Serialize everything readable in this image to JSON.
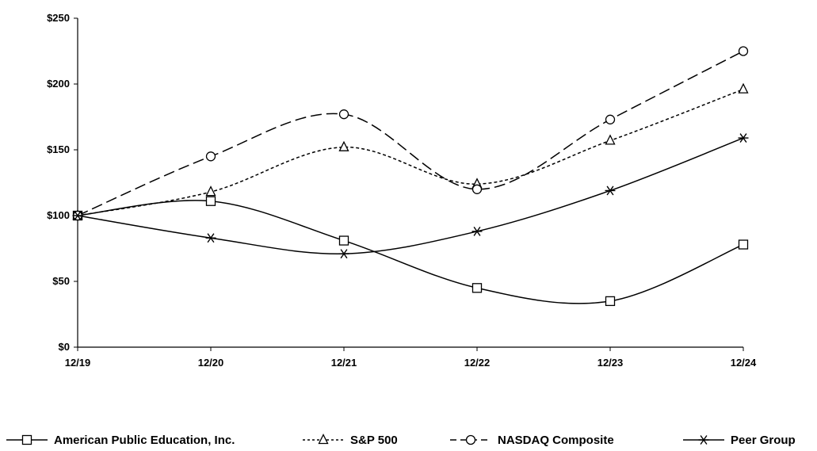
{
  "chart_data": {
    "type": "line",
    "categories": [
      "12/19",
      "12/20",
      "12/21",
      "12/22",
      "12/23",
      "12/24"
    ],
    "ylim": [
      0,
      250
    ],
    "yticks": [
      0,
      50,
      100,
      150,
      200,
      250
    ],
    "ytick_labels": [
      "$0",
      "$50",
      "$100",
      "$150",
      "$200",
      "$250"
    ],
    "legend_position": "bottom",
    "grid": false,
    "series": [
      {
        "name": "American Public Education, Inc.",
        "values": [
          100,
          111,
          81,
          45,
          35,
          78
        ],
        "marker": "square",
        "dash": "solid",
        "color": "#000000"
      },
      {
        "name": "S&P 500",
        "values": [
          100,
          118,
          152,
          124,
          157,
          196
        ],
        "marker": "triangle",
        "dash": "dotted",
        "color": "#000000"
      },
      {
        "name": "NASDAQ Composite",
        "values": [
          100,
          145,
          177,
          120,
          173,
          225
        ],
        "marker": "circle",
        "dash": "dashed",
        "color": "#000000"
      },
      {
        "name": "Peer Group",
        "values": [
          100,
          83,
          71,
          88,
          119,
          159
        ],
        "marker": "asterisk",
        "dash": "solid",
        "color": "#000000"
      }
    ]
  }
}
